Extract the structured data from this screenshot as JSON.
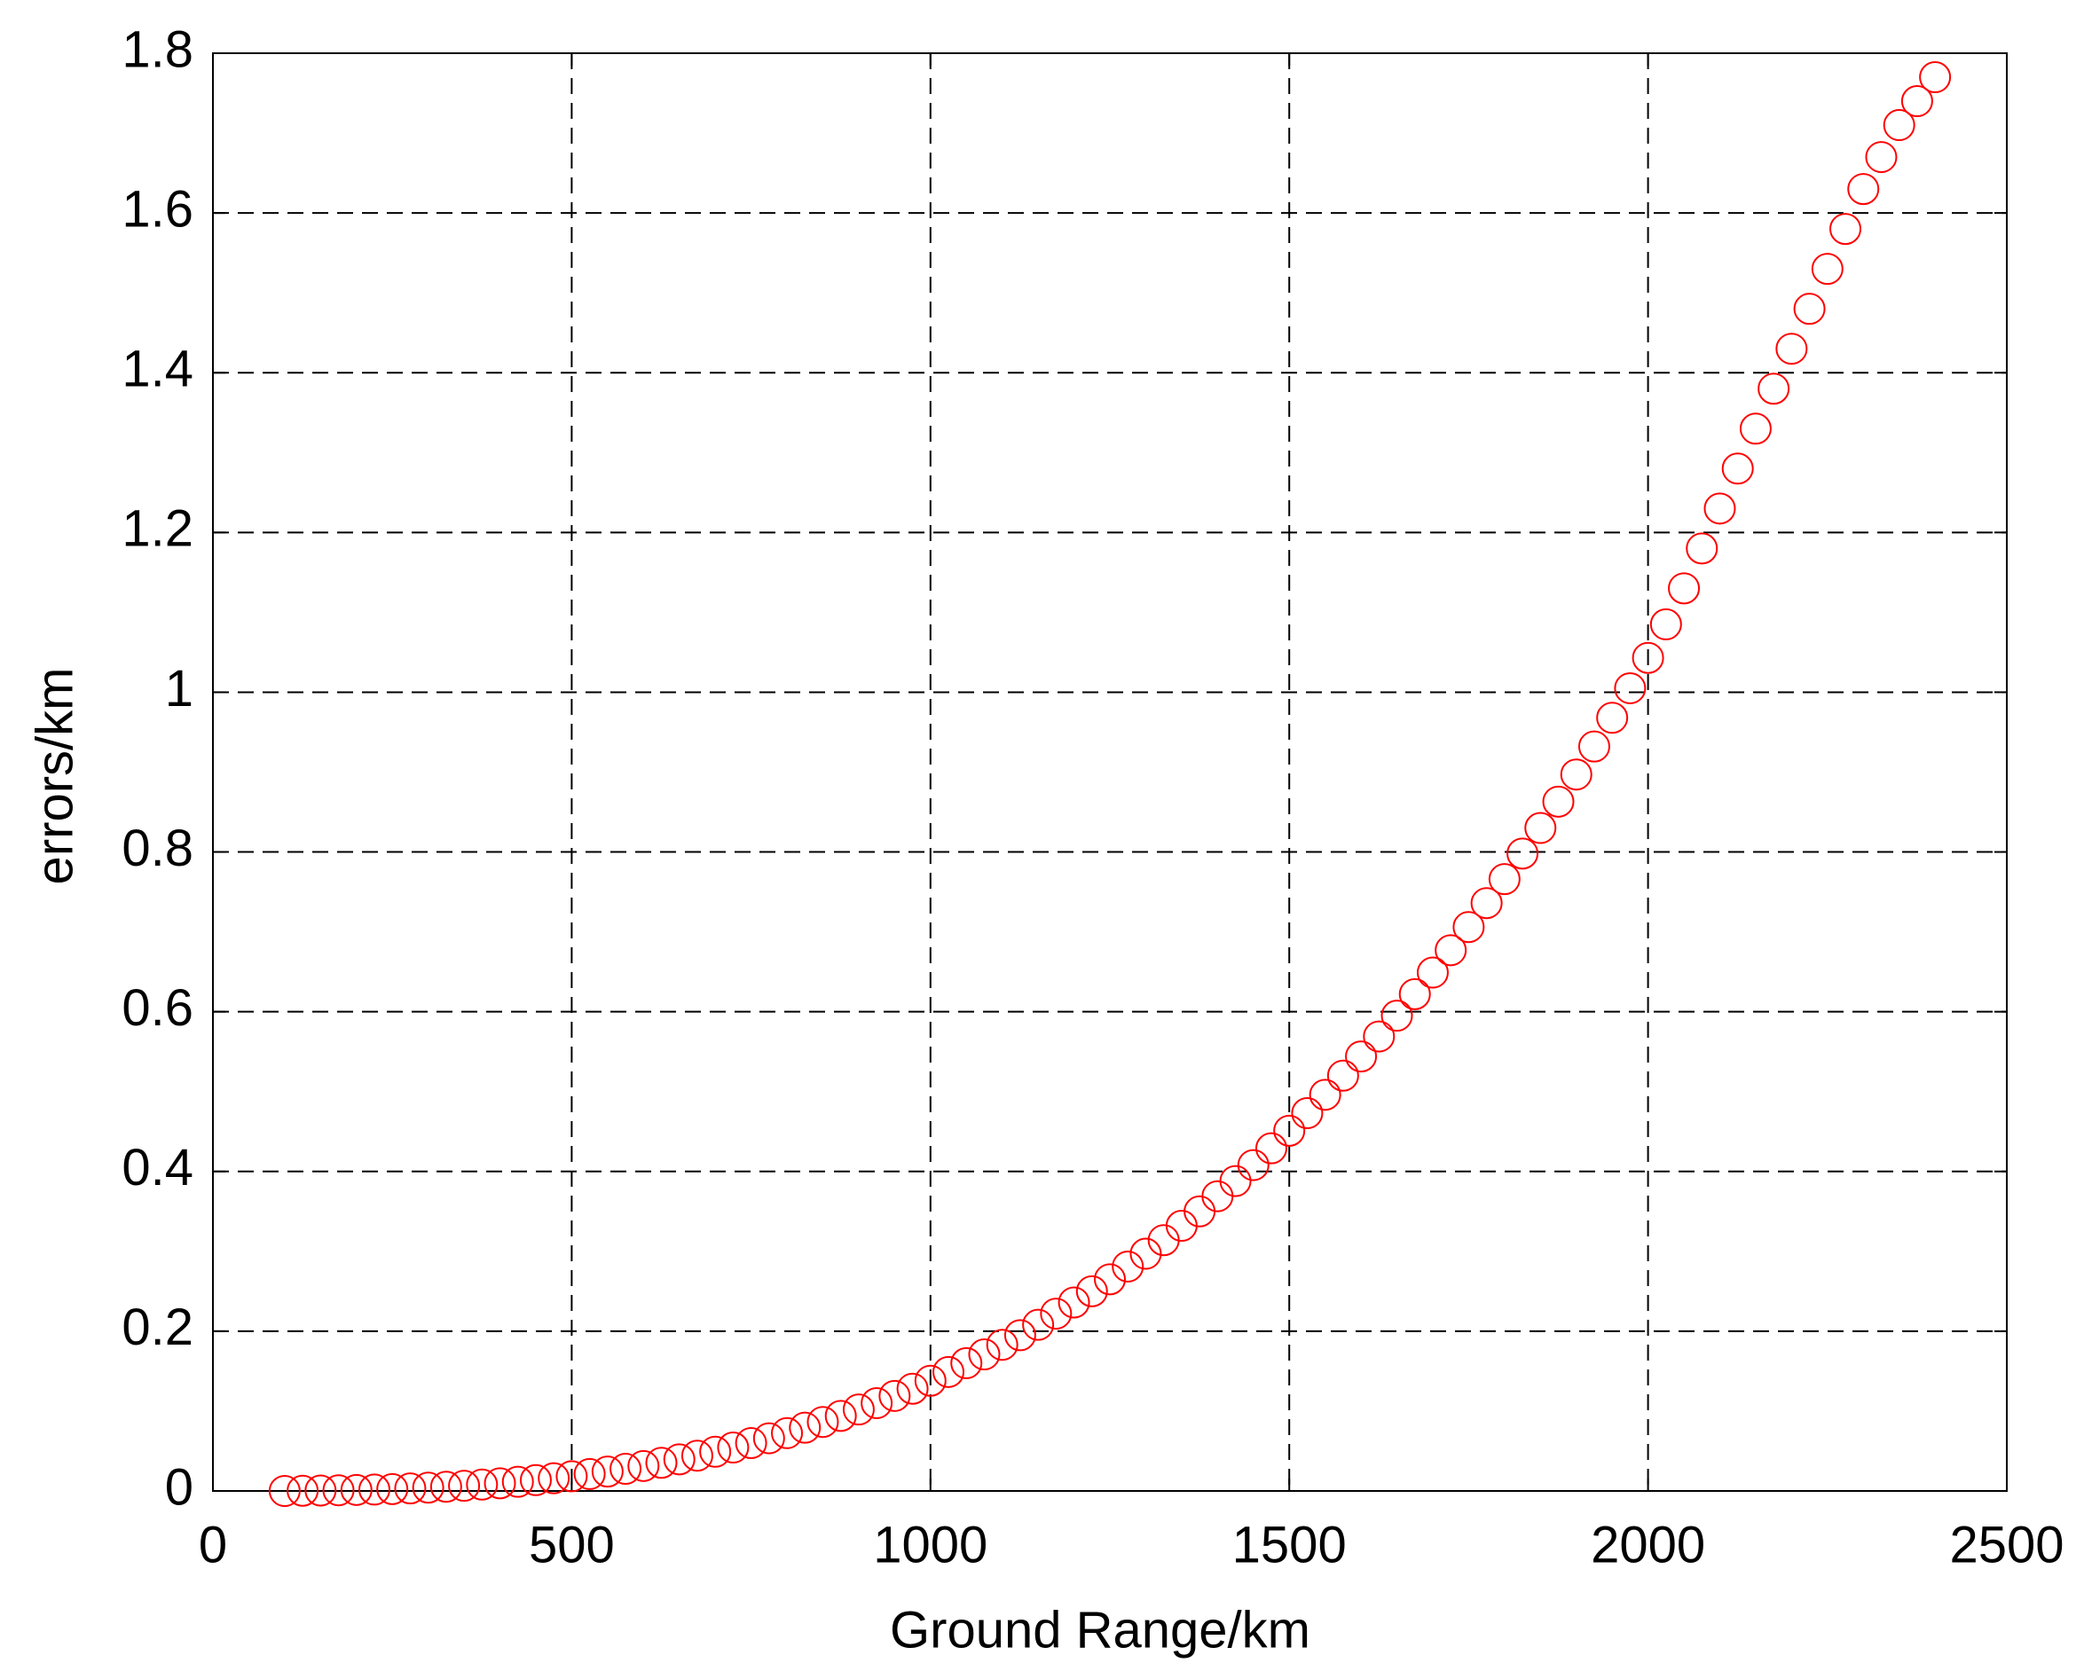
{
  "chart_data": {
    "type": "scatter",
    "xlabel": "Ground Range/km",
    "ylabel": "errors/km",
    "xlim": [
      0,
      2500
    ],
    "ylim": [
      0,
      1.8
    ],
    "xticks": [
      0,
      500,
      1000,
      1500,
      2000,
      2500
    ],
    "yticks": [
      0,
      0.2,
      0.4,
      0.6,
      0.8,
      1,
      1.2,
      1.4,
      1.6,
      1.8
    ],
    "grid": true,
    "series": [
      {
        "color": "#ff0000",
        "x": [
          100,
          125,
          150,
          175,
          200,
          225,
          250,
          275,
          300,
          325,
          350,
          375,
          400,
          425,
          450,
          475,
          500,
          525,
          550,
          575,
          600,
          625,
          650,
          675,
          700,
          725,
          750,
          775,
          800,
          825,
          850,
          875,
          900,
          925,
          950,
          975,
          1000,
          1025,
          1050,
          1075,
          1100,
          1125,
          1150,
          1175,
          1200,
          1225,
          1250,
          1275,
          1300,
          1325,
          1350,
          1375,
          1400,
          1425,
          1450,
          1475,
          1500,
          1525,
          1550,
          1575,
          1600,
          1625,
          1650,
          1675,
          1700,
          1725,
          1750,
          1775,
          1800,
          1825,
          1850,
          1875,
          1900,
          1925,
          1950,
          1975,
          2000,
          2025,
          2050,
          2075,
          2100,
          2125,
          2150,
          2175,
          2200,
          2225,
          2250,
          2275,
          2300,
          2325,
          2350,
          2375,
          2400
        ],
        "values": [
          0,
          0.0003,
          0.0006,
          0.0009,
          0.0013,
          0.0018,
          0.0024,
          0.0032,
          0.0042,
          0.0053,
          0.0065,
          0.008,
          0.0096,
          0.0115,
          0.0136,
          0.0159,
          0.0184,
          0.0212,
          0.0243,
          0.0277,
          0.0313,
          0.0353,
          0.0396,
          0.0442,
          0.0491,
          0.0544,
          0.06,
          0.066,
          0.0724,
          0.0792,
          0.0864,
          0.094,
          0.102,
          0.11,
          0.119,
          0.128,
          0.138,
          0.149,
          0.16,
          0.171,
          0.183,
          0.195,
          0.208,
          0.222,
          0.236,
          0.25,
          0.265,
          0.281,
          0.297,
          0.314,
          0.332,
          0.35,
          0.369,
          0.388,
          0.408,
          0.429,
          0.451,
          0.473,
          0.496,
          0.52,
          0.544,
          0.569,
          0.595,
          0.622,
          0.649,
          0.677,
          0.706,
          0.736,
          0.766,
          0.798,
          0.83,
          0.863,
          0.897,
          0.932,
          0.968,
          1.005,
          1.043,
          1.085,
          1.13,
          1.18,
          1.23,
          1.28,
          1.33,
          1.38,
          1.43,
          1.48,
          1.53,
          1.58,
          1.63,
          1.67,
          1.71,
          1.74,
          1.77
        ]
      }
    ]
  }
}
